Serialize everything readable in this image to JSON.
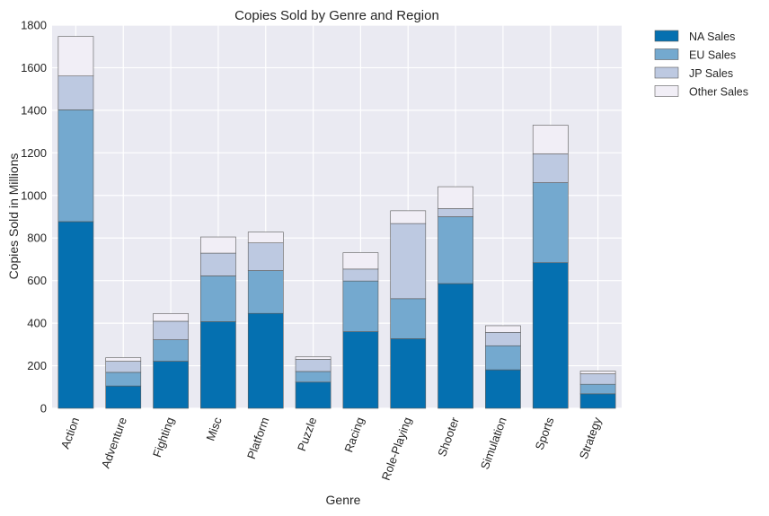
{
  "chart_data": {
    "type": "bar",
    "stacked": true,
    "title": "Copies Sold by Genre and Region",
    "xlabel": "Genre",
    "ylabel": "Copies Sold in Millions",
    "ylim": [
      0,
      1800
    ],
    "yticks": [
      0,
      200,
      400,
      600,
      800,
      1000,
      1200,
      1400,
      1600,
      1800
    ],
    "grid": true,
    "legend_position": "outside-top-right",
    "categories": [
      "Action",
      "Adventure",
      "Fighting",
      "Misc",
      "Platform",
      "Puzzle",
      "Racing",
      "Role-Playing",
      "Shooter",
      "Simulation",
      "Sports",
      "Strategy"
    ],
    "series": [
      {
        "name": "NA Sales",
        "color": "#0570b0",
        "values": [
          877,
          105,
          221,
          407,
          446,
          123,
          360,
          327,
          586,
          181,
          684,
          68
        ]
      },
      {
        "name": "EU Sales",
        "color": "#74a9cf",
        "values": [
          525,
          64,
          101,
          215,
          201,
          50,
          238,
          188,
          314,
          113,
          376,
          45
        ]
      },
      {
        "name": "JP Sales",
        "color": "#bdc9e1",
        "values": [
          159,
          52,
          87,
          107,
          130,
          57,
          56,
          353,
          38,
          63,
          135,
          49
        ]
      },
      {
        "name": "Other Sales",
        "color": "#f1eef6",
        "values": [
          186,
          17,
          36,
          76,
          51,
          12,
          77,
          60,
          103,
          31,
          135,
          13
        ]
      }
    ]
  }
}
